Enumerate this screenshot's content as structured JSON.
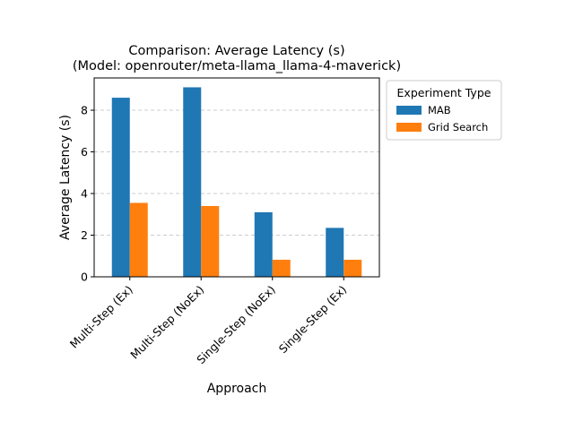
{
  "chart_data": {
    "type": "bar",
    "title_line1": "Comparison: Average Latency (s)",
    "title_line2": "(Model: openrouter/meta-llama_llama-4-maverick)",
    "xlabel": "Approach",
    "ylabel": "Average Latency (s)",
    "categories": [
      "Multi-Step (Ex)",
      "Multi-Step (NoEx)",
      "Single-Step (NoEx)",
      "Single-Step (Ex)"
    ],
    "series": [
      {
        "name": "MAB",
        "values": [
          8.6,
          9.1,
          3.1,
          2.35
        ],
        "color": "#1f77b4"
      },
      {
        "name": "Grid Search",
        "values": [
          3.55,
          3.4,
          0.82,
          0.82
        ],
        "color": "#ff7f0e"
      }
    ],
    "ylim": [
      0,
      9.55
    ],
    "yticks": [
      0,
      2,
      4,
      6,
      8
    ],
    "grid": "y-dashed",
    "legend": {
      "title": "Experiment Type",
      "placement": "outside-right-top"
    }
  }
}
